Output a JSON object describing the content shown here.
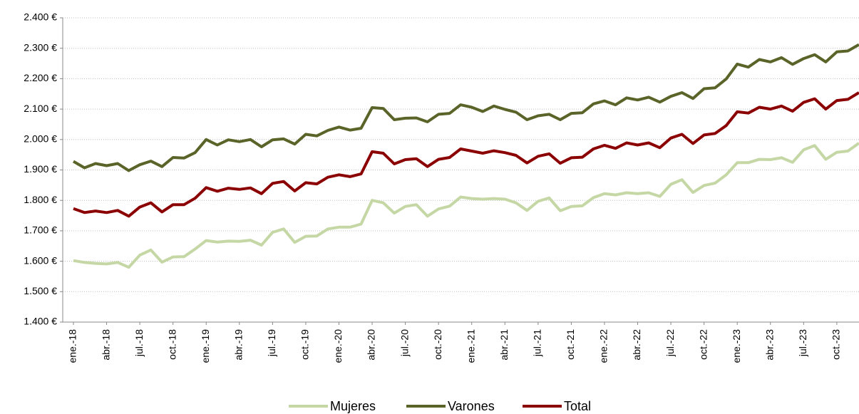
{
  "chart_data": {
    "type": "line",
    "categories": [
      "ene.-18",
      null,
      null,
      "abr.-18",
      null,
      null,
      "jul.-18",
      null,
      null,
      "oct.-18",
      null,
      null,
      "ene.-19",
      null,
      null,
      "abr.-19",
      null,
      null,
      "jul.-19",
      null,
      null,
      "oct.-19",
      null,
      null,
      "ene.-20",
      null,
      null,
      "abr.-20",
      null,
      null,
      "jul.-20",
      null,
      null,
      "oct.-20",
      null,
      null,
      "ene.-21",
      null,
      null,
      "abr.-21",
      null,
      null,
      "jul.-21",
      null,
      null,
      "oct.-21",
      null,
      null,
      "ene.-22",
      null,
      null,
      "abr.-22",
      null,
      null,
      "jul.-22",
      null,
      null,
      "oct.-22",
      null,
      null,
      "ene.-23",
      null,
      null,
      "abr.-23",
      null,
      null,
      "jul.-23",
      null,
      null,
      "oct.-23",
      null,
      null
    ],
    "series": [
      {
        "name": "Mujeres",
        "color": "#c4d7a4",
        "values": [
          1602,
          1596,
          1593,
          1591,
          1596,
          1580,
          1620,
          1637,
          1597,
          1614,
          1615,
          1640,
          1668,
          1663,
          1666,
          1665,
          1669,
          1653,
          1695,
          1706,
          1662,
          1682,
          1683,
          1706,
          1712,
          1712,
          1722,
          1800,
          1792,
          1758,
          1780,
          1786,
          1748,
          1772,
          1781,
          1811,
          1806,
          1804,
          1806,
          1804,
          1792,
          1767,
          1797,
          1808,
          1766,
          1780,
          1782,
          1809,
          1822,
          1818,
          1825,
          1822,
          1825,
          1813,
          1853,
          1868,
          1826,
          1849,
          1857,
          1884,
          1924,
          1924,
          1935,
          1934,
          1940,
          1925,
          1966,
          1980,
          1935,
          1958,
          1962,
          1988
        ]
      },
      {
        "name": "Varones",
        "color": "#5a6328",
        "values": [
          1928,
          1907,
          1921,
          1914,
          1921,
          1898,
          1917,
          1929,
          1911,
          1941,
          1939,
          1957,
          2000,
          1982,
          1999,
          1993,
          2000,
          1976,
          1999,
          2002,
          1985,
          2017,
          2012,
          2030,
          2041,
          2031,
          2037,
          2105,
          2102,
          2065,
          2070,
          2071,
          2058,
          2083,
          2086,
          2114,
          2106,
          2092,
          2110,
          2099,
          2090,
          2065,
          2078,
          2083,
          2065,
          2086,
          2088,
          2117,
          2127,
          2114,
          2137,
          2130,
          2139,
          2123,
          2142,
          2154,
          2135,
          2167,
          2170,
          2199,
          2248,
          2238,
          2263,
          2255,
          2269,
          2247,
          2266,
          2279,
          2255,
          2288,
          2291,
          2312
        ]
      },
      {
        "name": "Total",
        "color": "#8b0000",
        "values": [
          1773,
          1760,
          1765,
          1760,
          1767,
          1748,
          1778,
          1792,
          1762,
          1786,
          1786,
          1807,
          1842,
          1830,
          1840,
          1836,
          1841,
          1822,
          1856,
          1862,
          1831,
          1858,
          1854,
          1876,
          1884,
          1878,
          1887,
          1960,
          1955,
          1920,
          1934,
          1937,
          1911,
          1935,
          1941,
          1969,
          1962,
          1955,
          1963,
          1957,
          1948,
          1923,
          1945,
          1953,
          1922,
          1940,
          1942,
          1969,
          1981,
          1971,
          1989,
          1982,
          1989,
          1973,
          2005,
          2017,
          1987,
          2015,
          2020,
          2046,
          2091,
          2087,
          2106,
          2100,
          2110,
          2093,
          2122,
          2134,
          2100,
          2128,
          2132,
          2154
        ]
      }
    ],
    "ylim": [
      1400,
      2400
    ],
    "yticks": [
      {
        "value": 1400,
        "label": "1.400 €"
      },
      {
        "value": 1500,
        "label": "1.500 €"
      },
      {
        "value": 1600,
        "label": "1.600 €"
      },
      {
        "value": 1700,
        "label": "1.700 €"
      },
      {
        "value": 1800,
        "label": "1.800 €"
      },
      {
        "value": 1900,
        "label": "1.900 €"
      },
      {
        "value": 2000,
        "label": "2.000 €"
      },
      {
        "value": 2100,
        "label": "2.100 €"
      },
      {
        "value": 2200,
        "label": "2.200 €"
      },
      {
        "value": 2300,
        "label": "2.300 €"
      },
      {
        "value": 2400,
        "label": "2.400 €"
      }
    ],
    "grid": true,
    "legend": "bottom"
  }
}
